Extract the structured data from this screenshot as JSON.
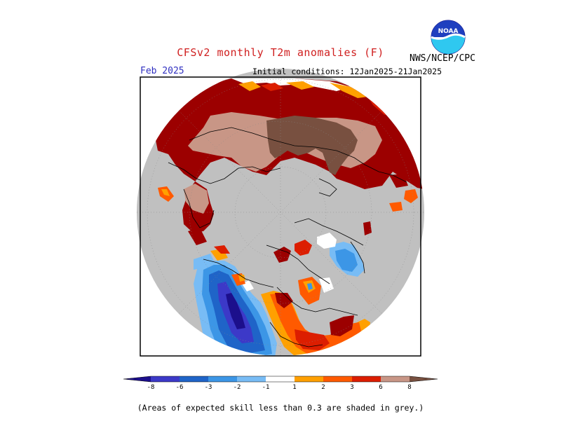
{
  "header": {
    "title": "CFSv2 monthly T2m anomalies (F)",
    "agency": "NWS/NCEP/CPC",
    "logo_text": "NOAA",
    "month": "Feb 2025",
    "initial_conditions": "Initial conditions: 12Jan2025-21Jan2025"
  },
  "colors": {
    "title": "#d02020",
    "month": "#3030c0",
    "grey_mask": "#c0c0c0"
  },
  "colorbar": {
    "ticks": [
      "-8",
      "-6",
      "-3",
      "-2",
      "-1",
      "1",
      "2",
      "3",
      "6",
      "8"
    ],
    "colors": [
      "#1c0f8c",
      "#3c39c8",
      "#1f64c8",
      "#3c96e6",
      "#78bcf5",
      "#ffffff",
      "#ffa000",
      "#ff5a00",
      "#dc1e00",
      "#9c0000",
      "#c89686",
      "#785040"
    ]
  },
  "footnote": "(Areas of expected skill less than 0.3 are shaded in grey.)"
}
